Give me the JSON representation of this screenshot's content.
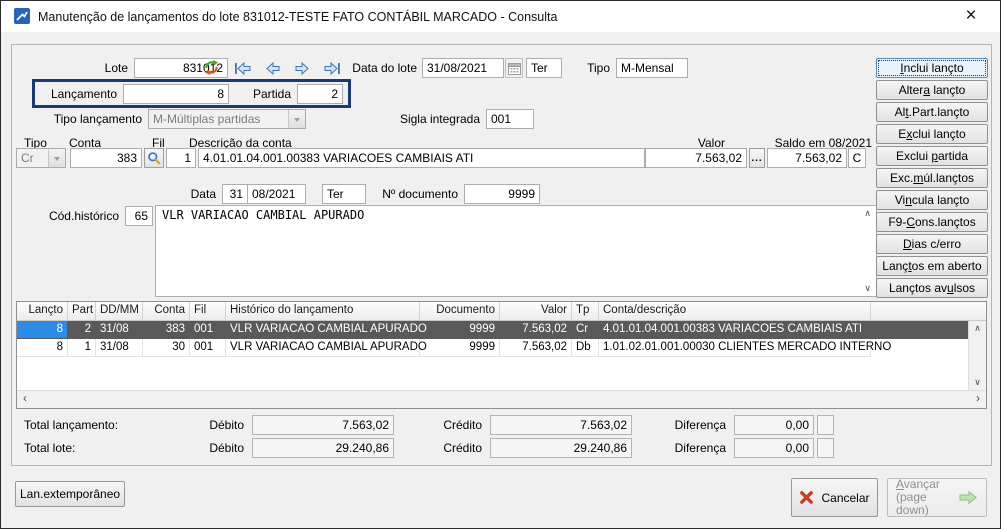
{
  "window": {
    "title": "Manutenção de lançamentos do lote 831012-TESTE FATO CONTÁBIL MARCADO - Consulta",
    "close_glyph": "×"
  },
  "header": {
    "lote_label": "Lote",
    "lote_value": "831012",
    "lancamento_label": "Lançamento",
    "lancamento_value": "8",
    "partida_label": "Partida",
    "partida_value": "2",
    "tipo_lancamento_label": "Tipo lançamento",
    "tipo_lancamento_value": "M-Múltiplas partidas",
    "data_lote_label": "Data do lote",
    "data_lote_value": "31/08/2021",
    "data_lote_dow": "Ter",
    "tipo_label": "Tipo",
    "tipo_value": "M-Mensal",
    "sigla_label": "Sigla integrada",
    "sigla_value": "001"
  },
  "conta_row": {
    "tipo_label": "Tipo",
    "conta_label": "Conta",
    "fil_label": "Fil",
    "descricao_label": "Descrição da conta",
    "valor_label": "Valor",
    "saldo_label": "Saldo em 08/2021",
    "tipo_value": "Cr",
    "conta_value": "383",
    "fil_value": "1",
    "descricao_value": "4.01.01.04.001.00383 VARIACOES CAMBIAIS ATI",
    "valor_value": "7.563,02",
    "saldo_value": "7.563,02",
    "saldo_suffix": "C"
  },
  "detalhe": {
    "data_label": "Data",
    "dia": "31",
    "mes_ano": "08/2021",
    "dow": "Ter",
    "doc_label": "Nº documento",
    "doc_value": "9999",
    "hist_label": "Cód.histórico",
    "hist_cod": "65",
    "hist_text": "VLR VARIACAO CAMBIAL APURADO"
  },
  "actions": [
    {
      "label": "Inclui lançto",
      "accel": 0,
      "focused": true
    },
    {
      "label": "Altera lançto",
      "accel": 5
    },
    {
      "label": "Alt.Part.lançto",
      "accel": 2
    },
    {
      "label": "Exclui lançto",
      "accel": 1
    },
    {
      "label": "Exclui partida",
      "accel": 7
    },
    {
      "label": "Exc.múl.lançtos",
      "accel": 4
    },
    {
      "label": "Vincula lançto",
      "accel": 2
    },
    {
      "label": "F9-Cons.lançtos",
      "accel": 3
    },
    {
      "label": "Dias c/erro",
      "accel": 0
    },
    {
      "label": "Lançtos em aberto",
      "accel": 4
    },
    {
      "label": "Lançtos avulsos",
      "accel": 10
    }
  ],
  "grid": {
    "columns": [
      "Lançto",
      "Part",
      "DD/MM",
      "Conta",
      "Fil",
      "Histórico do lançamento",
      "Documento",
      "Valor",
      "Tp",
      "Conta/descrição"
    ],
    "rows": [
      {
        "selected": true,
        "cells": [
          "8",
          "2",
          "31/08",
          "383",
          "001",
          "VLR VARIACAO CAMBIAL APURADO",
          "9999",
          "7.563,02",
          "Cr",
          "4.01.01.04.001.00383 VARIACOES CAMBIAIS ATI"
        ]
      },
      {
        "selected": false,
        "cells": [
          "8",
          "1",
          "31/08",
          "30",
          "001",
          "VLR VARIACAO CAMBIAL APURADO",
          "9999",
          "7.563,02",
          "Db",
          "1.01.02.01.001.00030 CLIENTES MERCADO INTERNO"
        ]
      }
    ]
  },
  "totals": [
    {
      "label": "Total lançamento:",
      "debito_label": "Débito",
      "debito": "7.563,02",
      "credito_label": "Crédito",
      "credito": "7.563,02",
      "diferenca_label": "Diferença",
      "diferenca": "0,00"
    },
    {
      "label": "Total lote:",
      "debito_label": "Débito",
      "debito": "29.240,86",
      "credito_label": "Crédito",
      "credito": "29.240,86",
      "diferenca_label": "Diferença",
      "diferenca": "0,00"
    }
  ],
  "footer": {
    "lan_extemporaneo": "Lan.extemporâneo",
    "cancelar": "Cancelar",
    "avancar_line1": "Avançar",
    "avancar_line2": "(page down)"
  },
  "glyphs": {
    "scroll_up": "∧",
    "scroll_down": "∨",
    "scroll_left": "‹",
    "scroll_right": "›",
    "ellipsis": "..."
  },
  "colors": {
    "highlight_border": "#1b3a6d",
    "selected_row_bg": "#595959",
    "selected_cell_bg": "#2e8be4",
    "nav_arrow": "#3f74ae",
    "refresh_green": "#5aa02c",
    "refresh_orange": "#e2571b",
    "cancel_red": "#cf3b22",
    "avancar_green": "#bfe3ad"
  }
}
